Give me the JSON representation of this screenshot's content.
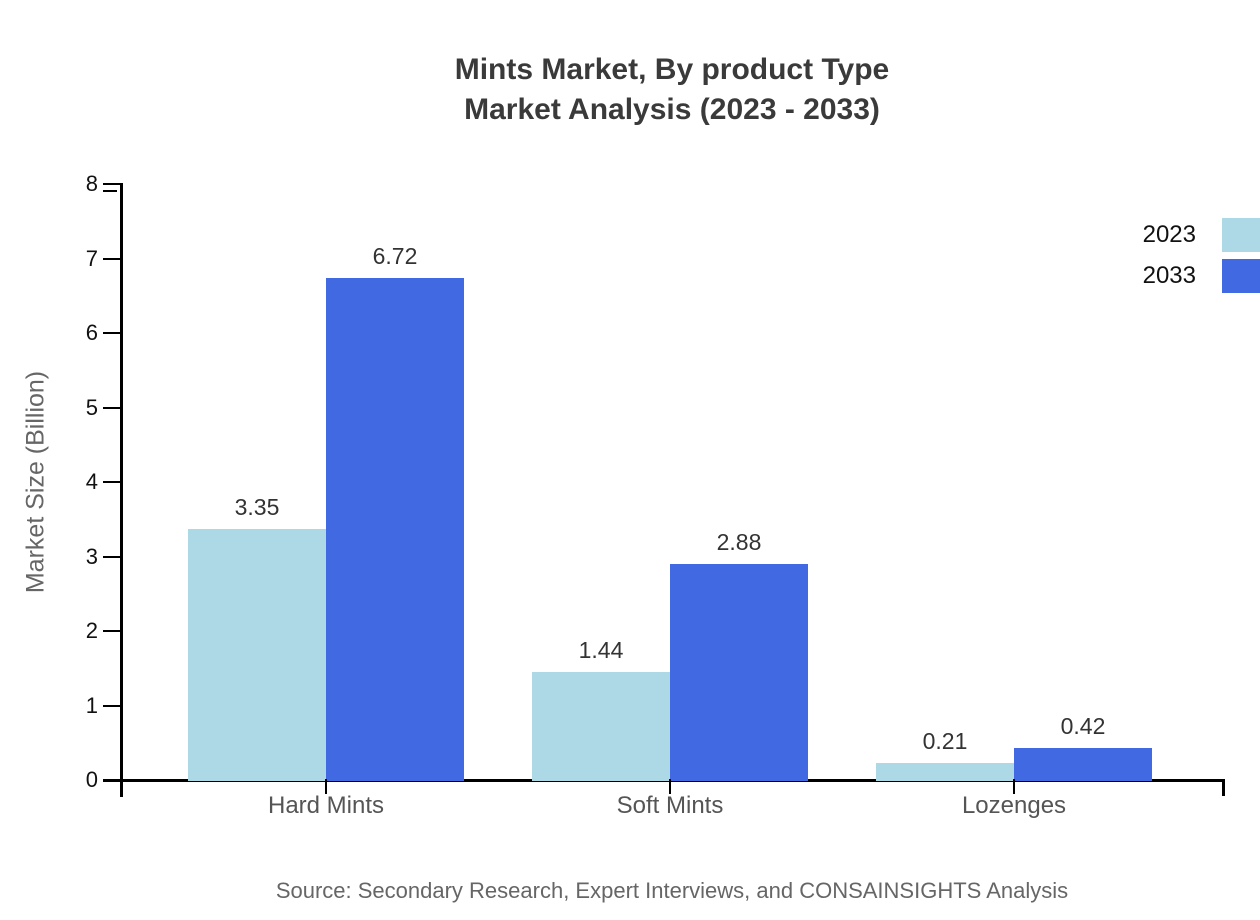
{
  "chart_data": {
    "type": "bar",
    "title_line1": "Mints Market, By product Type",
    "title_line2": "Market Analysis (2023 - 2033)",
    "categories": [
      "Hard Mints",
      "Soft Mints",
      "Lozenges"
    ],
    "series": [
      {
        "name": "2023",
        "color": "#ADD8E6",
        "values": [
          3.35,
          1.44,
          0.21
        ]
      },
      {
        "name": "2033",
        "color": "#4169E1",
        "values": [
          6.72,
          2.88,
          0.42
        ]
      }
    ],
    "ylabel": "Market Size (Billion)",
    "xlabel": "",
    "ylim": [
      0,
      8
    ],
    "yticks": [
      0,
      1,
      2,
      3,
      4,
      5,
      6,
      7,
      8
    ],
    "grid": false,
    "legend_position": "top-right",
    "value_labels_shown": true
  },
  "footer": {
    "source_note": "Source: Secondary Research, Expert Interviews, and CONSAINSIGHTS Analysis"
  },
  "colors": {
    "series_2023": "#ADD8E6",
    "series_2033": "#4169E1",
    "title_text": "#3a3a3a",
    "value_label_text": "#333333",
    "tick_label_text": "#111111",
    "category_text": "#555555",
    "muted_text": "#666666",
    "axis_line": "#000000",
    "background": "#ffffff"
  }
}
